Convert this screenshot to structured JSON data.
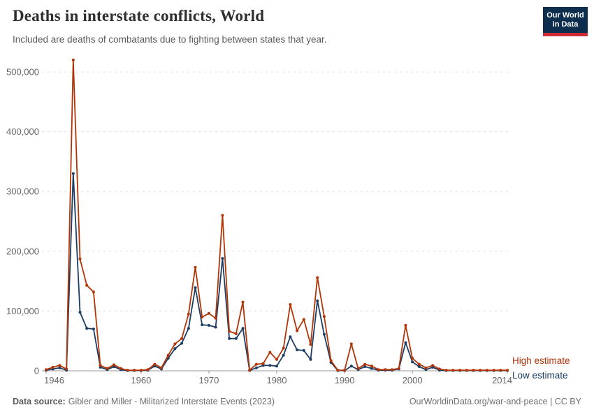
{
  "header": {
    "title": "Deaths in interstate conflicts, World",
    "subtitle": "Included are deaths of combatants due to fighting between states that year.",
    "logo": {
      "line1": "Our World",
      "line2": "in Data",
      "bg_color": "#0E2E4E",
      "bar_color": "#CE2B37"
    }
  },
  "chart_data": {
    "type": "line",
    "title": "Deaths in interstate conflicts, World",
    "x": [
      1946,
      1947,
      1948,
      1949,
      1950,
      1951,
      1952,
      1953,
      1954,
      1955,
      1956,
      1957,
      1958,
      1959,
      1960,
      1961,
      1962,
      1963,
      1964,
      1965,
      1966,
      1967,
      1968,
      1969,
      1970,
      1971,
      1972,
      1973,
      1974,
      1975,
      1976,
      1977,
      1978,
      1979,
      1980,
      1981,
      1982,
      1983,
      1984,
      1985,
      1986,
      1987,
      1988,
      1989,
      1990,
      1991,
      1992,
      1993,
      1994,
      1995,
      1996,
      1997,
      1998,
      1999,
      2000,
      2001,
      2002,
      2003,
      2004,
      2005,
      2006,
      2007,
      2008,
      2009,
      2010,
      2011,
      2012,
      2013,
      2014
    ],
    "series": [
      {
        "name": "High estimate",
        "color": "#B13507",
        "values": [
          2000,
          6000,
          9000,
          3000,
          520000,
          187000,
          143000,
          132000,
          9000,
          4000,
          10000,
          4000,
          1000,
          1000,
          1000,
          2000,
          11000,
          5000,
          26000,
          45000,
          54000,
          95000,
          173000,
          90000,
          96000,
          88000,
          260000,
          66000,
          62000,
          115000,
          1000,
          11000,
          12000,
          31000,
          19000,
          38000,
          111000,
          67000,
          86000,
          44000,
          156000,
          91000,
          17000,
          1000,
          1000,
          45000,
          4000,
          11000,
          8000,
          2000,
          2000,
          2000,
          4000,
          76000,
          21000,
          11000,
          5000,
          9000,
          3000,
          1000,
          1000,
          1000,
          1000,
          1000,
          1000,
          1000,
          1000,
          1000,
          1000
        ]
      },
      {
        "name": "Low estimate",
        "color": "#1D3D63",
        "values": [
          1000,
          3000,
          5000,
          1000,
          330000,
          98000,
          71000,
          70000,
          6000,
          2000,
          7000,
          2000,
          500,
          500,
          500,
          1000,
          8000,
          3000,
          21000,
          37000,
          46000,
          71000,
          139000,
          77000,
          76000,
          73000,
          188000,
          54000,
          54000,
          71000,
          500,
          5000,
          9000,
          9000,
          8000,
          26000,
          57000,
          35000,
          34000,
          19000,
          117000,
          61000,
          14000,
          500,
          500,
          8000,
          2000,
          7000,
          4000,
          1000,
          1000,
          1000,
          3000,
          47000,
          15000,
          7000,
          2000,
          6000,
          1000,
          500,
          500,
          500,
          500,
          500,
          500,
          500,
          500,
          500,
          500
        ]
      }
    ],
    "ylim": [
      0,
      500000
    ],
    "yticks": [
      0,
      100000,
      200000,
      300000,
      400000,
      500000
    ],
    "ytick_labels": [
      "0",
      "100,000",
      "200,000",
      "300,000",
      "400,000",
      "500,000"
    ],
    "xticks": [
      1946,
      1960,
      1970,
      1980,
      1990,
      2000,
      2014
    ],
    "grid": "horizontal-dashed",
    "legend_position": "right-of-line-end",
    "colors": {
      "grid": "#dddddd",
      "axis": "#999999",
      "tick_labels": "#666666"
    }
  },
  "footer": {
    "source_label": "Data source:",
    "source_text": "Gibler and Miller - Militarized Interstate Events (2023)",
    "attribution": "OurWorldinData.org/war-and-peace | CC BY"
  }
}
